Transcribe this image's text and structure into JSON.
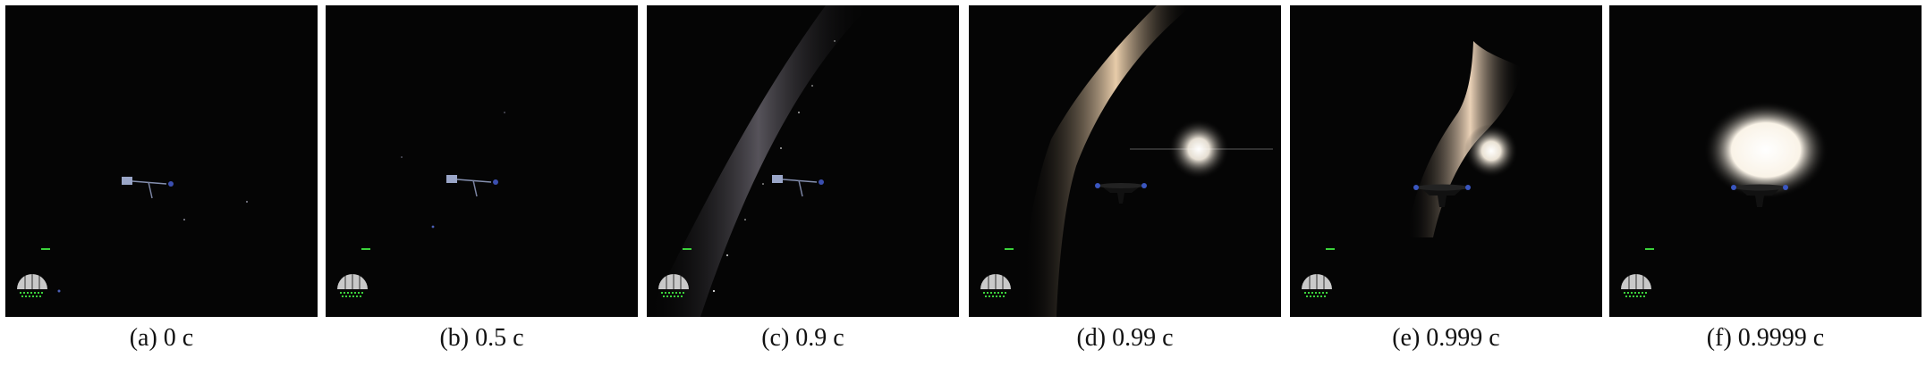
{
  "panels": [
    {
      "caption": "(a) 0 c"
    },
    {
      "caption": "(b) 0.5 c"
    },
    {
      "caption": "(c) 0.9 c"
    },
    {
      "caption": "(d) 0.99 c"
    },
    {
      "caption": "(e) 0.999 c"
    },
    {
      "caption": "(f) 0.9999 c"
    }
  ],
  "colors": {
    "space": "#050505",
    "hud_green": "#3bd13b",
    "galaxy_warm": "#f3d6b2",
    "core_white": "#ffffff"
  },
  "icons": [
    "spaceship-icon",
    "navball-icon",
    "sun-icon",
    "milky-way-band"
  ]
}
